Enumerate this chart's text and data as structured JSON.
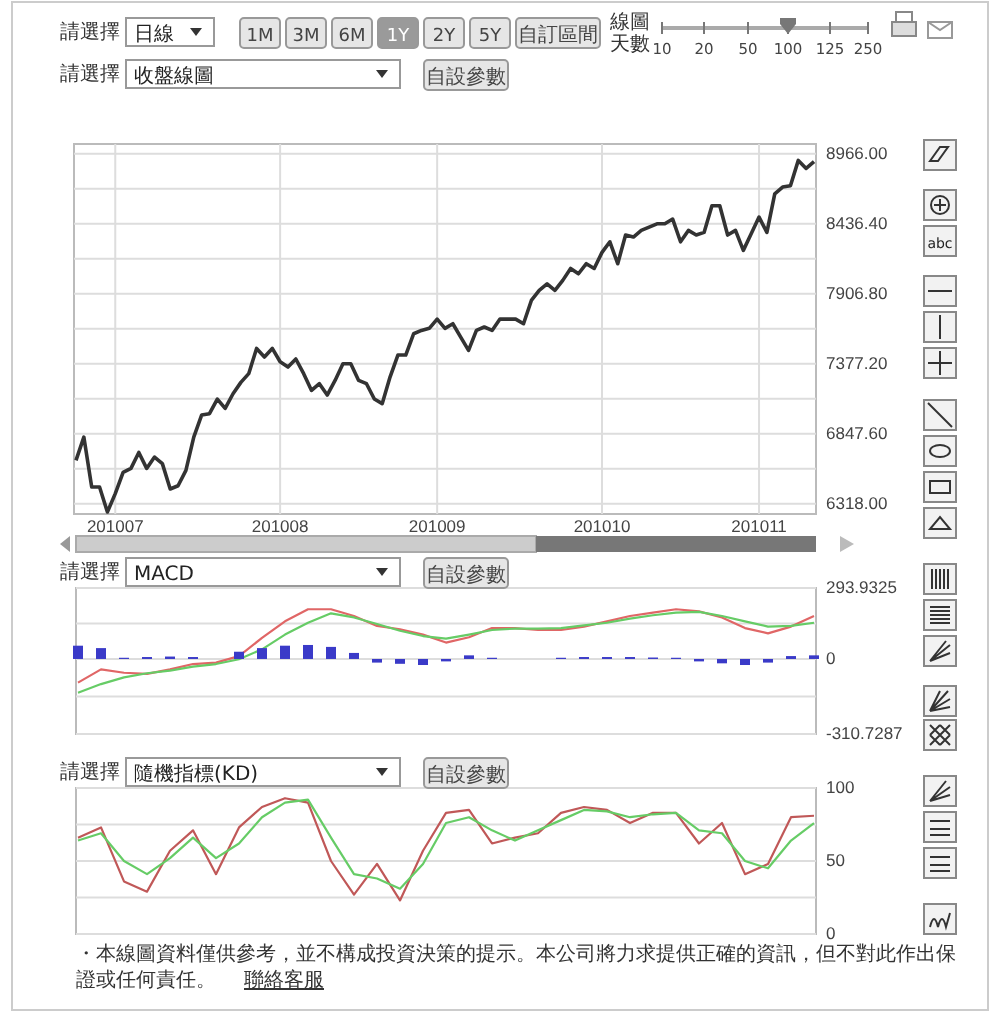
{
  "chart_data": [
    {
      "type": "line",
      "color": "#333333",
      "grid": true,
      "categories": [
        null,
        null,
        null,
        null,
        null,
        "201007",
        null,
        null,
        null,
        null,
        null,
        null,
        null,
        null,
        null,
        null,
        null,
        null,
        null,
        null,
        null,
        null,
        null,
        null,
        null,
        null,
        "201008",
        null,
        null,
        null,
        null,
        null,
        null,
        null,
        null,
        null,
        null,
        null,
        null,
        null,
        null,
        null,
        null,
        null,
        null,
        null,
        "201009",
        null,
        null,
        null,
        null,
        null,
        null,
        null,
        null,
        null,
        null,
        null,
        null,
        null,
        null,
        null,
        null,
        null,
        null,
        null,
        null,
        "201010",
        null,
        null,
        null,
        null,
        null,
        null,
        null,
        null,
        null,
        null,
        null,
        null,
        null,
        null,
        null,
        null,
        null,
        null,
        null,
        "201011",
        null,
        null,
        null,
        null,
        null,
        null,
        null
      ],
      "values": [
        6646,
        6822,
        6444,
        6444,
        6255,
        6394,
        6555,
        6585,
        6706,
        6585,
        6671,
        6621,
        6429,
        6454,
        6570,
        6822,
        6989,
        6999,
        7110,
        7039,
        7150,
        7236,
        7302,
        7493,
        7428,
        7493,
        7392,
        7352,
        7413,
        7302,
        7175,
        7226,
        7140,
        7251,
        7377,
        7377,
        7251,
        7226,
        7110,
        7075,
        7276,
        7443,
        7443,
        7604,
        7629,
        7645,
        7715,
        7645,
        7680,
        7579,
        7478,
        7629,
        7655,
        7629,
        7715,
        7715,
        7715,
        7680,
        7856,
        7932,
        7982,
        7932,
        8008,
        8098,
        8058,
        8134,
        8098,
        8220,
        8300,
        8134,
        8351,
        8336,
        8386,
        8411,
        8436,
        8436,
        8472,
        8300,
        8386,
        8351,
        8371,
        8573,
        8573,
        8351,
        8386,
        8235,
        8361,
        8487,
        8371,
        8663,
        8714,
        8724,
        8916,
        8855,
        8906
      ],
      "ylim": [
        6240,
        9040
      ],
      "yticks": [
        {
          "value": 6318,
          "label": "6318.00"
        },
        {
          "value": 6582.8,
          "label": null
        },
        {
          "value": 6847.6,
          "label": "6847.60"
        },
        {
          "value": 7112.4,
          "label": null
        },
        {
          "value": 7377.2,
          "label": "7377.20"
        },
        {
          "value": 7642,
          "label": null
        },
        {
          "value": 7906.8,
          "label": "7906.80"
        },
        {
          "value": 8171.6,
          "label": null
        },
        {
          "value": 8436.4,
          "label": "8436.40"
        },
        {
          "value": 8701.2,
          "label": null
        },
        {
          "value": 8966,
          "label": "8966.00"
        }
      ],
      "annotations": [
        "請選擇",
        "日線",
        "1M",
        "3M",
        "6M",
        "1Y",
        "2Y",
        "5Y",
        "自訂區間",
        "線圖天數",
        "10",
        "20",
        "50",
        "100",
        "125",
        "250",
        "請選擇",
        "收盤線圖",
        "自設參數",
        "abc"
      ]
    },
    {
      "type": "line",
      "grid": "y",
      "categories": [
        null,
        null,
        null,
        null,
        null,
        null,
        null,
        null,
        null,
        null,
        null,
        null,
        null,
        null,
        null,
        null,
        null,
        null,
        null,
        null,
        null,
        null,
        null,
        null,
        null,
        null,
        null,
        null,
        null,
        null,
        null,
        null,
        null
      ],
      "series": [
        {
          "type": "bar",
          "color": "#3a3ac8",
          "values": [
            55,
            45,
            5,
            8,
            10,
            8,
            0,
            30,
            45,
            55,
            58,
            50,
            25,
            -15,
            -20,
            -25,
            -10,
            15,
            5,
            0,
            0,
            5,
            8,
            8,
            8,
            6,
            5,
            -10,
            -18,
            -25,
            -15,
            12,
            15
          ]
        },
        {
          "color": "#e06666",
          "values": [
            -98,
            -43,
            -57,
            -62,
            -43,
            -21,
            -15,
            12,
            87,
            156,
            206,
            206,
            178,
            137,
            123,
            101,
            68,
            90,
            128,
            128,
            120,
            120,
            134,
            156,
            178,
            192,
            206,
            197,
            172,
            128,
            106,
            134,
            178
          ]
        },
        {
          "color": "#66cc66",
          "values": [
            -140,
            -104,
            -76,
            -59,
            -48,
            -32,
            -21,
            -1,
            40,
            101,
            150,
            189,
            172,
            145,
            117,
            95,
            84,
            101,
            120,
            126,
            126,
            128,
            139,
            150,
            167,
            181,
            192,
            195,
            178,
            156,
            134,
            137,
            150
          ]
        }
      ],
      "ylim": [
        -310.7287,
        293.9325
      ],
      "yticks": [
        -310.7287,
        {
          "value": -155.36,
          "label": null
        },
        0,
        {
          "value": 146.97,
          "label": null
        },
        293.9325
      ],
      "annotations": [
        "請選擇",
        "MACD",
        "自設參數"
      ]
    },
    {
      "type": "line",
      "grid": "y",
      "categories": [
        null,
        null,
        null,
        null,
        null,
        null,
        null,
        null,
        null,
        null,
        null,
        null,
        null,
        null,
        null,
        null,
        null,
        null,
        null,
        null,
        null,
        null,
        null,
        null,
        null,
        null,
        null,
        null,
        null,
        null,
        null,
        null,
        null
      ],
      "series": [
        {
          "color": "#c05858",
          "values": [
            66,
            73,
            36,
            29,
            57,
            71,
            41,
            73,
            87,
            93,
            90,
            50,
            27,
            48,
            23,
            57,
            83,
            85,
            62,
            66,
            69,
            83,
            87,
            85,
            76,
            83,
            83,
            62,
            76,
            41,
            48,
            80,
            81
          ]
        },
        {
          "color": "#66cc66",
          "values": [
            64,
            69,
            50,
            41,
            52,
            66,
            52,
            62,
            80,
            90,
            92,
            66,
            41,
            38,
            31,
            48,
            76,
            80,
            71,
            64,
            71,
            78,
            85,
            84,
            80,
            82,
            83,
            71,
            69,
            50,
            45,
            64,
            76
          ]
        }
      ],
      "ylim": [
        0,
        100
      ],
      "yticks": [
        0,
        {
          "value": 25,
          "label": null
        },
        50,
        {
          "value": 75,
          "label": null
        },
        100
      ],
      "annotations": [
        "請選擇",
        "隨機指標(KD)",
        "自設參數",
        "・本線圖資料僅供參考，並不構成投資決策的提示。本公司將力求提供正確的資訊，但不對此作出保證或任何責任。",
        "聯絡客服"
      ]
    }
  ]
}
